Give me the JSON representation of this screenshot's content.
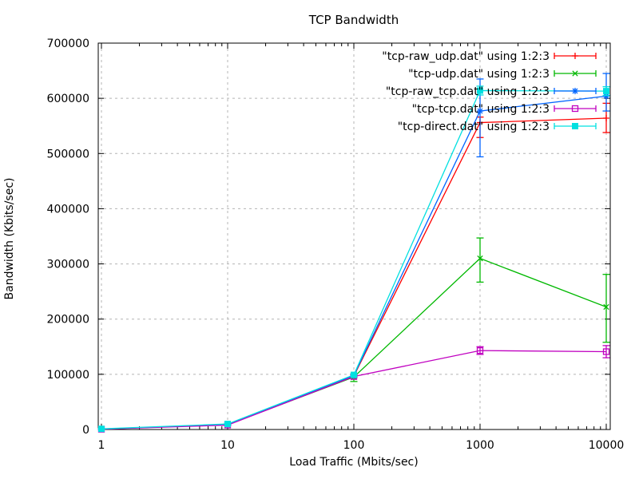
{
  "title": "TCP Bandwidth",
  "axes": {
    "xlabel": "Load Traffic (Mbits/sec)",
    "ylabel": "Bandwidth (Kbits/sec)"
  },
  "chart_data": {
    "type": "line",
    "title": "TCP Bandwidth",
    "xlabel": "Load Traffic (Mbits/sec)",
    "ylabel": "Bandwidth (Kbits/sec)",
    "x_scale": "log",
    "xlim": [
      1,
      10000
    ],
    "ylim": [
      0,
      700000
    ],
    "x_ticks": [
      1,
      10,
      100,
      1000,
      10000
    ],
    "y_ticks": [
      0,
      100000,
      200000,
      300000,
      400000,
      500000,
      600000,
      700000
    ],
    "grid": true,
    "grid_color": "#b4b4b4",
    "legend_position": "top-right-inside",
    "series": [
      {
        "label": "\"tcp-raw_udp.dat\" using 1:2:3",
        "color": "#ff0000",
        "marker": "plus",
        "x": [
          1,
          10,
          100,
          1000,
          10000
        ],
        "y": [
          800,
          9000,
          97000,
          556000,
          564000
        ],
        "y_err_low": [
          600,
          8500,
          95000,
          529000,
          538000
        ],
        "y_err_high": [
          1000,
          9500,
          99000,
          566000,
          591000
        ]
      },
      {
        "label": "\"tcp-udp.dat\" using 1:2:3",
        "color": "#00b800",
        "marker": "cross",
        "x": [
          1,
          10,
          100,
          1000,
          10000
        ],
        "y": [
          700,
          8800,
          95000,
          310000,
          222000
        ],
        "y_err_low": [
          500,
          8300,
          87000,
          267000,
          158000
        ],
        "y_err_high": [
          900,
          9300,
          97500,
          347000,
          281000
        ]
      },
      {
        "label": "\"tcp-raw_tcp.dat\" using 1:2:3",
        "color": "#0064ff",
        "marker": "asterisk",
        "x": [
          1,
          10,
          100,
          1000,
          10000
        ],
        "y": [
          800,
          9000,
          98000,
          577000,
          604000
        ],
        "y_err_low": [
          600,
          8500,
          96000,
          494000,
          577000
        ],
        "y_err_high": [
          1000,
          9500,
          100000,
          635000,
          645000
        ]
      },
      {
        "label": "\"tcp-tcp.dat\" using 1:2:3",
        "color": "#c000c0",
        "marker": "square-open",
        "x": [
          1,
          10,
          100,
          1000,
          10000
        ],
        "y": [
          500,
          8000,
          96000,
          143000,
          141000
        ],
        "y_err_low": [
          300,
          7500,
          94000,
          136000,
          130000
        ],
        "y_err_high": [
          700,
          8500,
          98000,
          150000,
          152000
        ]
      },
      {
        "label": "\"tcp-direct.dat\" using 1:2:3",
        "color": "#00e0e0",
        "marker": "square-filled",
        "x": [
          1,
          10,
          100,
          1000,
          10000
        ],
        "y": [
          1200,
          10000,
          99000,
          614000,
          613000
        ],
        "y_err_low": [
          800,
          9500,
          97000,
          606000,
          605000
        ],
        "y_err_high": [
          1600,
          10500,
          101000,
          622000,
          621000
        ]
      }
    ]
  }
}
